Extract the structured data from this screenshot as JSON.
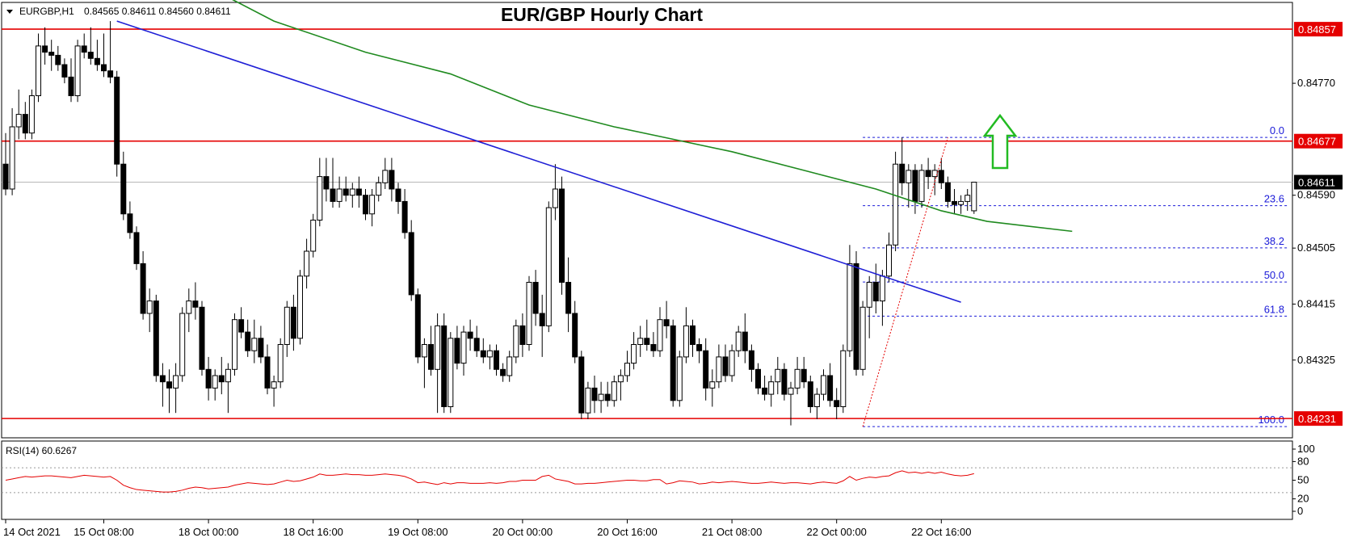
{
  "chart_data": {
    "type": "candlestick",
    "title": "EUR/GBP Hourly Chart",
    "symbol_label": "EURGBP,H1",
    "ohlc_label": "0.84565 0.84611 0.84560 0.84611",
    "price_axis": {
      "range": [
        0.842,
        0.849
      ],
      "ticks": [
        "0.84770",
        "0.84590",
        "0.84505",
        "0.84415",
        "0.84325"
      ],
      "tick_values": [
        0.8477,
        0.8459,
        0.84505,
        0.84415,
        0.84325
      ]
    },
    "time_axis": {
      "labels": [
        "14 Oct 2021",
        "15 Oct 08:00",
        "18 Oct 00:00",
        "18 Oct 16:00",
        "19 Oct 08:00",
        "20 Oct 00:00",
        "20 Oct 16:00",
        "21 Oct 08:00",
        "22 Oct 00:00",
        "22 Oct 16:00"
      ],
      "label_bars": [
        0,
        15,
        31,
        47,
        63,
        79,
        95,
        111,
        127,
        143
      ]
    },
    "current_price": "0.84611",
    "current_price_value": 0.84611,
    "horizontal_levels": [
      {
        "label": "0.84857",
        "value": 0.84857,
        "color": "#e50000"
      },
      {
        "label": "0.84677",
        "value": 0.84677,
        "color": "#e50000"
      },
      {
        "label": "0.84231",
        "value": 0.84231,
        "color": "#e50000"
      }
    ],
    "fibonacci": {
      "from": {
        "bar": 131,
        "price": 0.84218
      },
      "to": {
        "bar": 144,
        "price": 0.84683
      },
      "levels": [
        {
          "label": "0.0",
          "ratio": 0.0
        },
        {
          "label": "23.6",
          "ratio": 0.236
        },
        {
          "label": "38.2",
          "ratio": 0.382
        },
        {
          "label": "50.0",
          "ratio": 0.5
        },
        {
          "label": "61.8",
          "ratio": 0.618
        },
        {
          "label": "100.0",
          "ratio": 1.0
        }
      ],
      "color": "#1a1ad8"
    },
    "trendline": {
      "from": {
        "bar": 17,
        "price": 0.8487
      },
      "to": {
        "bar": 146,
        "price": 0.84418
      },
      "color": "#1f1fd6"
    },
    "moving_average": {
      "color": "#1f8a1f",
      "points": [
        {
          "bar": 30,
          "price": 0.8493
        },
        {
          "bar": 41,
          "price": 0.8487
        },
        {
          "bar": 55,
          "price": 0.8482
        },
        {
          "bar": 68,
          "price": 0.84785
        },
        {
          "bar": 80,
          "price": 0.84735
        },
        {
          "bar": 93,
          "price": 0.847
        },
        {
          "bar": 102,
          "price": 0.8468
        },
        {
          "bar": 111,
          "price": 0.8466
        },
        {
          "bar": 122,
          "price": 0.8463
        },
        {
          "bar": 133,
          "price": 0.846
        },
        {
          "bar": 143,
          "price": 0.84565
        },
        {
          "bar": 150,
          "price": 0.84548
        },
        {
          "bar": 163,
          "price": 0.84532
        }
      ]
    },
    "up_arrow_color": "#22bb22",
    "candles": [
      [
        0.8464,
        0.8469,
        0.8459,
        0.846
      ],
      [
        0.846,
        0.8473,
        0.8459,
        0.847
      ],
      [
        0.847,
        0.8476,
        0.8468,
        0.8472
      ],
      [
        0.8472,
        0.8474,
        0.8468,
        0.8469
      ],
      [
        0.8469,
        0.8476,
        0.8468,
        0.8475
      ],
      [
        0.8475,
        0.8485,
        0.8474,
        0.8483
      ],
      [
        0.8483,
        0.8486,
        0.848,
        0.8482
      ],
      [
        0.8482,
        0.8484,
        0.8479,
        0.84815
      ],
      [
        0.84815,
        0.8483,
        0.8479,
        0.848
      ],
      [
        0.848,
        0.8481,
        0.8477,
        0.8478
      ],
      [
        0.8478,
        0.8481,
        0.8474,
        0.8475
      ],
      [
        0.8475,
        0.8484,
        0.8474,
        0.8483
      ],
      [
        0.8483,
        0.8485,
        0.8481,
        0.8482
      ],
      [
        0.8482,
        0.8486,
        0.848,
        0.8481
      ],
      [
        0.8481,
        0.8484,
        0.8479,
        0.848
      ],
      [
        0.848,
        0.8485,
        0.8478,
        0.8479
      ],
      [
        0.8479,
        0.8487,
        0.8477,
        0.8478
      ],
      [
        0.8478,
        0.8479,
        0.8462,
        0.8464
      ],
      [
        0.8464,
        0.8466,
        0.8455,
        0.8456
      ],
      [
        0.8456,
        0.8458,
        0.8452,
        0.8453
      ],
      [
        0.8453,
        0.8454,
        0.8447,
        0.8448
      ],
      [
        0.8448,
        0.845,
        0.8439,
        0.844
      ],
      [
        0.844,
        0.8444,
        0.8437,
        0.8442
      ],
      [
        0.8442,
        0.8443,
        0.8429,
        0.843
      ],
      [
        0.843,
        0.8432,
        0.8425,
        0.8429
      ],
      [
        0.8429,
        0.8431,
        0.8424,
        0.8428
      ],
      [
        0.8428,
        0.8432,
        0.8424,
        0.843
      ],
      [
        0.843,
        0.8441,
        0.8429,
        0.844
      ],
      [
        0.844,
        0.8444,
        0.8437,
        0.8442
      ],
      [
        0.8442,
        0.8445,
        0.8439,
        0.8441
      ],
      [
        0.8441,
        0.8442,
        0.843,
        0.8431
      ],
      [
        0.8431,
        0.8433,
        0.8426,
        0.8428
      ],
      [
        0.8428,
        0.8431,
        0.8426,
        0.843
      ],
      [
        0.843,
        0.8433,
        0.8427,
        0.8429
      ],
      [
        0.8429,
        0.8432,
        0.8424,
        0.8431
      ],
      [
        0.8431,
        0.844,
        0.843,
        0.8439
      ],
      [
        0.8439,
        0.8441,
        0.8436,
        0.8437
      ],
      [
        0.8437,
        0.8439,
        0.8433,
        0.8434
      ],
      [
        0.8434,
        0.8439,
        0.8432,
        0.8436
      ],
      [
        0.8436,
        0.8438,
        0.8432,
        0.8433
      ],
      [
        0.8433,
        0.8435,
        0.8427,
        0.8428
      ],
      [
        0.8428,
        0.843,
        0.8425,
        0.8429
      ],
      [
        0.8429,
        0.8436,
        0.8428,
        0.8435
      ],
      [
        0.8435,
        0.8442,
        0.8433,
        0.8441
      ],
      [
        0.8441,
        0.8443,
        0.8434,
        0.8436
      ],
      [
        0.8436,
        0.8447,
        0.8435,
        0.8446
      ],
      [
        0.8446,
        0.8452,
        0.8444,
        0.845
      ],
      [
        0.845,
        0.8456,
        0.8449,
        0.8455
      ],
      [
        0.8455,
        0.8465,
        0.8454,
        0.8462
      ],
      [
        0.8462,
        0.8465,
        0.8458,
        0.846
      ],
      [
        0.846,
        0.8465,
        0.8457,
        0.8458
      ],
      [
        0.8458,
        0.8462,
        0.8457,
        0.846
      ],
      [
        0.846,
        0.8462,
        0.8458,
        0.8459
      ],
      [
        0.8459,
        0.8461,
        0.8457,
        0.846
      ],
      [
        0.846,
        0.8462,
        0.8457,
        0.8459
      ],
      [
        0.8459,
        0.846,
        0.8455,
        0.8456
      ],
      [
        0.8456,
        0.846,
        0.8454,
        0.8459
      ],
      [
        0.8459,
        0.8462,
        0.8458,
        0.8461
      ],
      [
        0.8461,
        0.8465,
        0.846,
        0.8463
      ],
      [
        0.8463,
        0.8465,
        0.8458,
        0.846
      ],
      [
        0.846,
        0.8461,
        0.8456,
        0.8458
      ],
      [
        0.8458,
        0.846,
        0.8452,
        0.8453
      ],
      [
        0.8453,
        0.8455,
        0.8442,
        0.8443
      ],
      [
        0.8443,
        0.8444,
        0.8432,
        0.8433
      ],
      [
        0.8433,
        0.8436,
        0.8428,
        0.8435
      ],
      [
        0.8435,
        0.8438,
        0.843,
        0.8431
      ],
      [
        0.8431,
        0.844,
        0.8424,
        0.8438
      ],
      [
        0.8438,
        0.844,
        0.8424,
        0.8425
      ],
      [
        0.8425,
        0.8437,
        0.8424,
        0.8436
      ],
      [
        0.8436,
        0.8438,
        0.8431,
        0.8432
      ],
      [
        0.8432,
        0.8438,
        0.843,
        0.8437
      ],
      [
        0.8437,
        0.8439,
        0.8434,
        0.8436
      ],
      [
        0.8436,
        0.8438,
        0.8433,
        0.8434
      ],
      [
        0.8434,
        0.8436,
        0.8432,
        0.8433
      ],
      [
        0.8433,
        0.8435,
        0.8431,
        0.8434
      ],
      [
        0.8434,
        0.8435,
        0.843,
        0.8431
      ],
      [
        0.8431,
        0.8432,
        0.8429,
        0.843
      ],
      [
        0.843,
        0.8434,
        0.8429,
        0.8433
      ],
      [
        0.8433,
        0.8439,
        0.8432,
        0.8438
      ],
      [
        0.8438,
        0.844,
        0.8433,
        0.8435
      ],
      [
        0.8435,
        0.8446,
        0.8434,
        0.8445
      ],
      [
        0.8445,
        0.8447,
        0.8438,
        0.844
      ],
      [
        0.844,
        0.8443,
        0.8433,
        0.8438
      ],
      [
        0.8438,
        0.8458,
        0.8437,
        0.8457
      ],
      [
        0.8457,
        0.8464,
        0.8455,
        0.846
      ],
      [
        0.846,
        0.8462,
        0.8443,
        0.8445
      ],
      [
        0.8445,
        0.8449,
        0.8437,
        0.844
      ],
      [
        0.844,
        0.8442,
        0.8432,
        0.8433
      ],
      [
        0.8433,
        0.8434,
        0.8423,
        0.8424
      ],
      [
        0.8424,
        0.8429,
        0.8423,
        0.8428
      ],
      [
        0.8428,
        0.843,
        0.8424,
        0.8426
      ],
      [
        0.8426,
        0.8429,
        0.8424,
        0.8427
      ],
      [
        0.8427,
        0.8429,
        0.8425,
        0.8426
      ],
      [
        0.8426,
        0.843,
        0.8425,
        0.8429
      ],
      [
        0.8429,
        0.8431,
        0.8426,
        0.843
      ],
      [
        0.843,
        0.8434,
        0.8429,
        0.8432
      ],
      [
        0.8432,
        0.8437,
        0.8431,
        0.8435
      ],
      [
        0.8435,
        0.8438,
        0.8433,
        0.8436
      ],
      [
        0.8436,
        0.8439,
        0.8434,
        0.8435
      ],
      [
        0.8435,
        0.8437,
        0.8433,
        0.8434
      ],
      [
        0.8434,
        0.8441,
        0.8433,
        0.8439
      ],
      [
        0.8439,
        0.8442,
        0.8436,
        0.8438
      ],
      [
        0.8438,
        0.8439,
        0.8425,
        0.8426
      ],
      [
        0.8426,
        0.8434,
        0.8425,
        0.8433
      ],
      [
        0.8433,
        0.8441,
        0.8432,
        0.8438
      ],
      [
        0.8438,
        0.8439,
        0.8433,
        0.8435
      ],
      [
        0.8435,
        0.8436,
        0.8432,
        0.8434
      ],
      [
        0.8434,
        0.8436,
        0.8426,
        0.8428
      ],
      [
        0.8428,
        0.8431,
        0.8425,
        0.8429
      ],
      [
        0.8429,
        0.8435,
        0.8428,
        0.8433
      ],
      [
        0.8433,
        0.8435,
        0.8429,
        0.843
      ],
      [
        0.843,
        0.8435,
        0.8429,
        0.8434
      ],
      [
        0.8434,
        0.8438,
        0.8433,
        0.8437
      ],
      [
        0.8437,
        0.844,
        0.8432,
        0.8434
      ],
      [
        0.8434,
        0.8435,
        0.8429,
        0.8431
      ],
      [
        0.8431,
        0.8432,
        0.8427,
        0.8428
      ],
      [
        0.8428,
        0.843,
        0.8426,
        0.8427
      ],
      [
        0.8427,
        0.843,
        0.8425,
        0.8429
      ],
      [
        0.8429,
        0.8433,
        0.8427,
        0.8431
      ],
      [
        0.8431,
        0.8432,
        0.8426,
        0.8427
      ],
      [
        0.8427,
        0.8429,
        0.8422,
        0.8428
      ],
      [
        0.8428,
        0.8433,
        0.8427,
        0.8431
      ],
      [
        0.8431,
        0.8433,
        0.8428,
        0.8429
      ],
      [
        0.8429,
        0.843,
        0.8424,
        0.8425
      ],
      [
        0.8425,
        0.8428,
        0.8423,
        0.8427
      ],
      [
        0.8427,
        0.8431,
        0.8426,
        0.843
      ],
      [
        0.843,
        0.8432,
        0.8425,
        0.8426
      ],
      [
        0.8426,
        0.8428,
        0.8423,
        0.8425
      ],
      [
        0.8425,
        0.8435,
        0.8424,
        0.8434
      ],
      [
        0.8434,
        0.8451,
        0.8433,
        0.8448
      ],
      [
        0.8448,
        0.845,
        0.843,
        0.8431
      ],
      [
        0.8431,
        0.8442,
        0.843,
        0.8441
      ],
      [
        0.8441,
        0.8446,
        0.8436,
        0.8445
      ],
      [
        0.8445,
        0.8448,
        0.844,
        0.8442
      ],
      [
        0.8442,
        0.8447,
        0.8438,
        0.8446
      ],
      [
        0.8446,
        0.8453,
        0.8445,
        0.8451
      ],
      [
        0.8451,
        0.8466,
        0.845,
        0.8464
      ],
      [
        0.8464,
        0.84683,
        0.8459,
        0.8461
      ],
      [
        0.8461,
        0.8464,
        0.8457,
        0.8463
      ],
      [
        0.8463,
        0.8464,
        0.8456,
        0.8458
      ],
      [
        0.8458,
        0.8464,
        0.8457,
        0.8463
      ],
      [
        0.8463,
        0.8465,
        0.846,
        0.8462
      ],
      [
        0.8462,
        0.8464,
        0.8459,
        0.8463
      ],
      [
        0.8463,
        0.8465,
        0.846,
        0.8461
      ],
      [
        0.8461,
        0.8462,
        0.8457,
        0.8458
      ],
      [
        0.8458,
        0.846,
        0.8456,
        0.84575
      ],
      [
        0.84575,
        0.8459,
        0.8456,
        0.8458
      ],
      [
        0.8458,
        0.846,
        0.84565,
        0.8459
      ],
      [
        0.84565,
        0.84611,
        0.8456,
        0.84611
      ]
    ],
    "rsi": {
      "label": "RSI(14) 60.6267",
      "range": [
        0,
        100
      ],
      "ticks": [
        "100",
        "80",
        "50",
        "20",
        "0"
      ],
      "tick_values": [
        100,
        80,
        50,
        20,
        0
      ],
      "dotted_levels": [
        70,
        30
      ],
      "color": "#e50000",
      "values": [
        50,
        52,
        54,
        56,
        55,
        56,
        57,
        57,
        56,
        55,
        54,
        56,
        58,
        57,
        56,
        55,
        56,
        50,
        42,
        38,
        35,
        34,
        33,
        32,
        31,
        31,
        32,
        34,
        37,
        39,
        38,
        36,
        37,
        38,
        39,
        42,
        44,
        46,
        45,
        44,
        43,
        44,
        47,
        50,
        48,
        49,
        52,
        55,
        60,
        58,
        58,
        59,
        60,
        59,
        59,
        58,
        58,
        59,
        60,
        59,
        58,
        56,
        52,
        46,
        47,
        45,
        43,
        46,
        44,
        46,
        46,
        45,
        45,
        45,
        46,
        45,
        46,
        48,
        48,
        50,
        50,
        50,
        56,
        58,
        52,
        50,
        48,
        44,
        44,
        45,
        45,
        46,
        47,
        48,
        49,
        50,
        50,
        49,
        49,
        51,
        51,
        44,
        46,
        49,
        48,
        47,
        44,
        45,
        47,
        46,
        47,
        48,
        47,
        46,
        45,
        45,
        46,
        47,
        46,
        45,
        46,
        46,
        45,
        44,
        46,
        47,
        46,
        45,
        49,
        56,
        50,
        53,
        55,
        54,
        56,
        57,
        62,
        65,
        62,
        63,
        61,
        63,
        61,
        63,
        60,
        58,
        57,
        58,
        60.6
      ]
    }
  }
}
